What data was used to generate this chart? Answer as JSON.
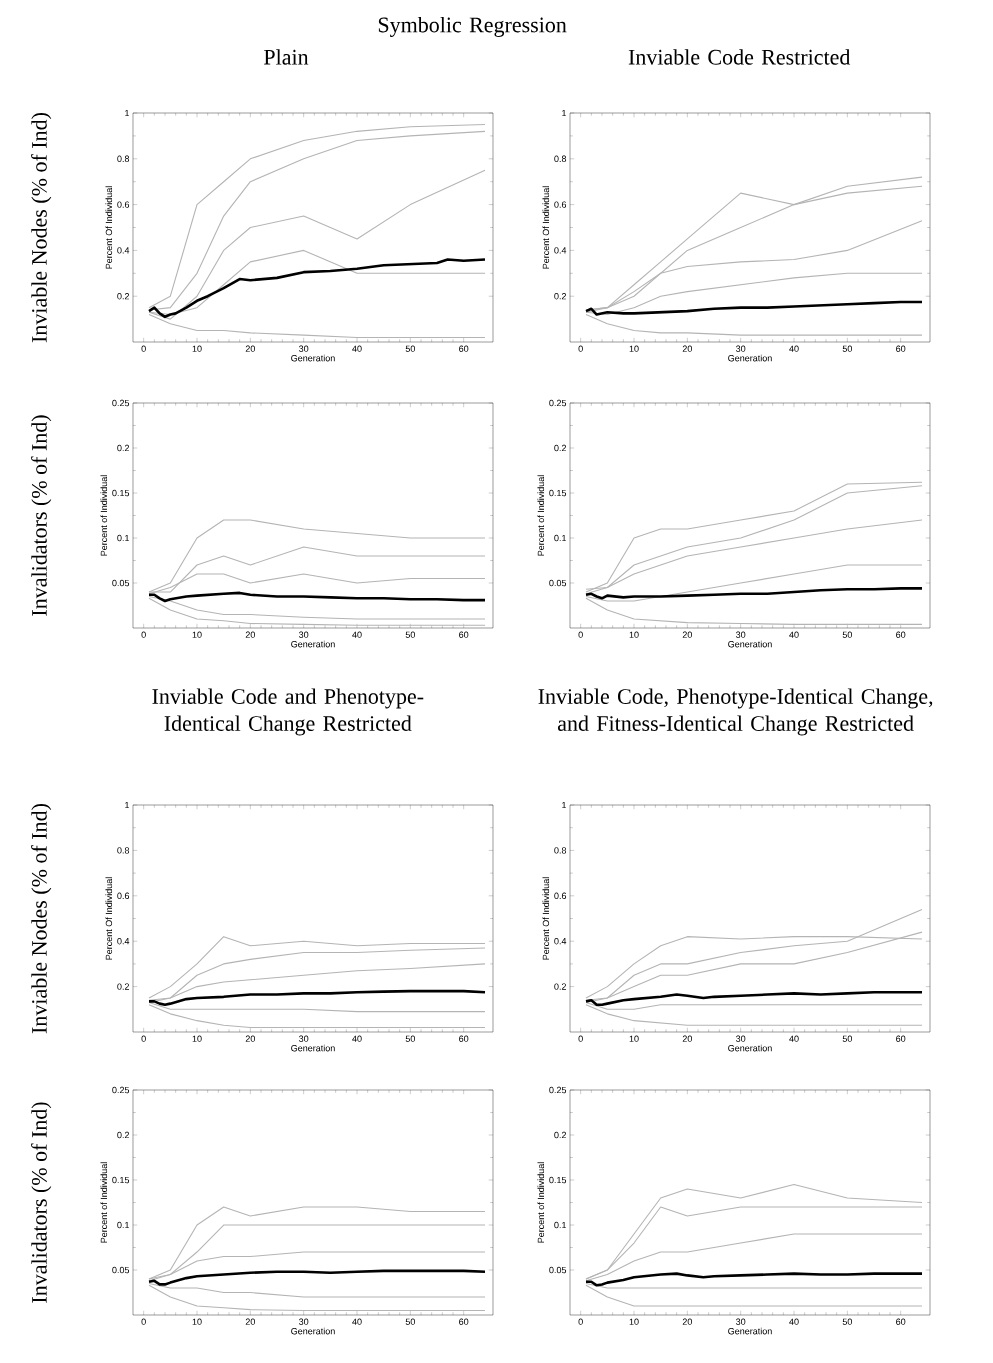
{
  "chart_data": [
    {
      "type": "line",
      "title": "Symbolic Regression",
      "subtitle": "Plain",
      "xlabel": "Generation",
      "ylabel": "Percent Of Individual",
      "annotations": [
        "Inviable Nodes (% of Ind)"
      ],
      "xlim": [
        -2,
        65.5
      ],
      "ylim": [
        0,
        1
      ],
      "xticks": [
        0,
        10,
        20,
        30,
        40,
        50,
        60
      ],
      "yticks": [
        0.2,
        0.4,
        0.6,
        0.8,
        1
      ],
      "series": [
        {
          "color": "#b4b4b4",
          "x": [
            1,
            5,
            10,
            15,
            20,
            30,
            40,
            50,
            64
          ],
          "values": [
            0.15,
            0.2,
            0.6,
            0.7,
            0.8,
            0.88,
            0.92,
            0.94,
            0.95
          ]
        },
        {
          "color": "#b4b4b4",
          "x": [
            1,
            5,
            10,
            15,
            20,
            30,
            40,
            50,
            64
          ],
          "values": [
            0.14,
            0.15,
            0.3,
            0.55,
            0.7,
            0.8,
            0.88,
            0.9,
            0.92
          ]
        },
        {
          "color": "#b4b4b4",
          "x": [
            1,
            5,
            10,
            15,
            20,
            30,
            40,
            50,
            64
          ],
          "values": [
            0.13,
            0.1,
            0.2,
            0.4,
            0.5,
            0.55,
            0.45,
            0.6,
            0.75
          ]
        },
        {
          "color": "#b4b4b4",
          "x": [
            1,
            5,
            10,
            15,
            20,
            30,
            40,
            50,
            64
          ],
          "values": [
            0.13,
            0.12,
            0.15,
            0.25,
            0.35,
            0.4,
            0.3,
            0.3,
            0.3
          ]
        },
        {
          "color": "#b4b4b4",
          "x": [
            1,
            5,
            10,
            15,
            20,
            30,
            40,
            50,
            64
          ],
          "values": [
            0.12,
            0.08,
            0.05,
            0.05,
            0.04,
            0.03,
            0.02,
            0.02,
            0.02
          ]
        },
        {
          "color": "#000000",
          "x": [
            1,
            2,
            3,
            4,
            5,
            6,
            8,
            10,
            12,
            15,
            18,
            20,
            25,
            30,
            35,
            40,
            45,
            50,
            55,
            57,
            60,
            64
          ],
          "values": [
            0.135,
            0.15,
            0.125,
            0.11,
            0.12,
            0.125,
            0.15,
            0.18,
            0.2,
            0.235,
            0.275,
            0.27,
            0.28,
            0.305,
            0.31,
            0.32,
            0.335,
            0.34,
            0.345,
            0.36,
            0.355,
            0.36
          ]
        }
      ]
    },
    {
      "type": "line",
      "title": "Inviable Code Restricted",
      "xlabel": "Generation",
      "ylabel": "Percent Of Individual",
      "xlim": [
        -2,
        65.5
      ],
      "ylim": [
        0,
        1
      ],
      "xticks": [
        0,
        10,
        20,
        30,
        40,
        50,
        60
      ],
      "yticks": [
        0.2,
        0.4,
        0.6,
        0.8,
        1
      ],
      "series": [
        {
          "color": "#b4b4b4",
          "x": [
            1,
            5,
            10,
            15,
            20,
            30,
            40,
            50,
            64
          ],
          "values": [
            0.14,
            0.15,
            0.25,
            0.35,
            0.45,
            0.65,
            0.6,
            0.68,
            0.72
          ]
        },
        {
          "color": "#b4b4b4",
          "x": [
            1,
            5,
            10,
            15,
            20,
            30,
            40,
            50,
            64
          ],
          "values": [
            0.14,
            0.15,
            0.2,
            0.3,
            0.4,
            0.5,
            0.6,
            0.65,
            0.68
          ]
        },
        {
          "color": "#b4b4b4",
          "x": [
            1,
            5,
            10,
            15,
            20,
            30,
            40,
            50,
            64
          ],
          "values": [
            0.13,
            0.15,
            0.22,
            0.3,
            0.33,
            0.35,
            0.36,
            0.4,
            0.53
          ]
        },
        {
          "color": "#b4b4b4",
          "x": [
            1,
            5,
            10,
            15,
            20,
            30,
            40,
            50,
            64
          ],
          "values": [
            0.13,
            0.12,
            0.15,
            0.2,
            0.22,
            0.25,
            0.28,
            0.3,
            0.3
          ]
        },
        {
          "color": "#b4b4b4",
          "x": [
            1,
            5,
            10,
            15,
            20,
            30,
            40,
            50,
            64
          ],
          "values": [
            0.12,
            0.08,
            0.05,
            0.04,
            0.04,
            0.03,
            0.03,
            0.03,
            0.03
          ]
        },
        {
          "color": "#000000",
          "x": [
            1,
            2,
            3,
            4,
            5,
            8,
            10,
            15,
            20,
            25,
            30,
            35,
            40,
            45,
            50,
            55,
            60,
            64
          ],
          "values": [
            0.135,
            0.145,
            0.12,
            0.125,
            0.13,
            0.125,
            0.125,
            0.13,
            0.135,
            0.145,
            0.15,
            0.15,
            0.155,
            0.16,
            0.165,
            0.17,
            0.175,
            0.175
          ]
        }
      ]
    },
    {
      "type": "line",
      "xlabel": "Generation",
      "ylabel": "Percent of Individual",
      "annotations": [
        "Invalidators (% of Ind)"
      ],
      "xlim": [
        -2,
        65.5
      ],
      "ylim": [
        0,
        0.25
      ],
      "xticks": [
        0,
        10,
        20,
        30,
        40,
        50,
        60
      ],
      "yticks": [
        0.05,
        0.1,
        0.15,
        0.2,
        0.25
      ],
      "series": [
        {
          "color": "#b4b4b4",
          "x": [
            1,
            5,
            10,
            15,
            20,
            30,
            40,
            50,
            64
          ],
          "values": [
            0.04,
            0.05,
            0.1,
            0.12,
            0.12,
            0.11,
            0.105,
            0.1,
            0.1
          ]
        },
        {
          "color": "#b4b4b4",
          "x": [
            1,
            5,
            10,
            15,
            20,
            30,
            40,
            50,
            64
          ],
          "values": [
            0.04,
            0.04,
            0.07,
            0.08,
            0.07,
            0.09,
            0.08,
            0.08,
            0.08
          ]
        },
        {
          "color": "#b4b4b4",
          "x": [
            1,
            5,
            10,
            15,
            20,
            30,
            40,
            50,
            64
          ],
          "values": [
            0.038,
            0.045,
            0.06,
            0.06,
            0.05,
            0.06,
            0.05,
            0.055,
            0.055
          ]
        },
        {
          "color": "#b4b4b4",
          "x": [
            1,
            5,
            10,
            15,
            20,
            30,
            40,
            50,
            64
          ],
          "values": [
            0.035,
            0.03,
            0.02,
            0.015,
            0.015,
            0.012,
            0.01,
            0.01,
            0.01
          ]
        },
        {
          "color": "#b4b4b4",
          "x": [
            1,
            5,
            10,
            15,
            20,
            30,
            40,
            50,
            64
          ],
          "values": [
            0.033,
            0.02,
            0.01,
            0.008,
            0.005,
            0.004,
            0.003,
            0.003,
            0.003
          ]
        },
        {
          "color": "#000000",
          "x": [
            1,
            2,
            3,
            4,
            5,
            8,
            10,
            15,
            18,
            20,
            25,
            30,
            35,
            40,
            45,
            50,
            55,
            60,
            64
          ],
          "values": [
            0.037,
            0.037,
            0.033,
            0.03,
            0.032,
            0.035,
            0.036,
            0.038,
            0.039,
            0.037,
            0.035,
            0.035,
            0.034,
            0.033,
            0.033,
            0.032,
            0.032,
            0.031,
            0.031
          ]
        }
      ]
    },
    {
      "type": "line",
      "xlabel": "Generation",
      "ylabel": "Percent of Individual",
      "xlim": [
        -2,
        65.5
      ],
      "ylim": [
        0,
        0.25
      ],
      "xticks": [
        0,
        10,
        20,
        30,
        40,
        50,
        60
      ],
      "yticks": [
        0.05,
        0.1,
        0.15,
        0.2,
        0.25
      ],
      "series": [
        {
          "color": "#b4b4b4",
          "x": [
            1,
            5,
            10,
            15,
            20,
            30,
            40,
            50,
            64
          ],
          "values": [
            0.04,
            0.05,
            0.1,
            0.11,
            0.11,
            0.12,
            0.13,
            0.16,
            0.162
          ]
        },
        {
          "color": "#b4b4b4",
          "x": [
            1,
            5,
            10,
            15,
            20,
            30,
            40,
            50,
            64
          ],
          "values": [
            0.043,
            0.045,
            0.07,
            0.08,
            0.09,
            0.1,
            0.12,
            0.15,
            0.158
          ]
        },
        {
          "color": "#b4b4b4",
          "x": [
            1,
            5,
            10,
            15,
            20,
            30,
            40,
            50,
            64
          ],
          "values": [
            0.038,
            0.045,
            0.06,
            0.07,
            0.08,
            0.09,
            0.1,
            0.11,
            0.12
          ]
        },
        {
          "color": "#b4b4b4",
          "x": [
            1,
            5,
            10,
            15,
            20,
            30,
            40,
            50,
            64
          ],
          "values": [
            0.035,
            0.03,
            0.03,
            0.035,
            0.04,
            0.05,
            0.06,
            0.07,
            0.07
          ]
        },
        {
          "color": "#b4b4b4",
          "x": [
            1,
            5,
            10,
            15,
            20,
            30,
            40,
            50,
            64
          ],
          "values": [
            0.033,
            0.02,
            0.01,
            0.008,
            0.006,
            0.005,
            0.004,
            0.004,
            0.004
          ]
        },
        {
          "color": "#000000",
          "x": [
            1,
            2,
            3,
            4,
            5,
            8,
            10,
            15,
            20,
            25,
            30,
            35,
            40,
            45,
            50,
            55,
            60,
            64
          ],
          "values": [
            0.037,
            0.038,
            0.035,
            0.033,
            0.036,
            0.034,
            0.035,
            0.035,
            0.036,
            0.037,
            0.038,
            0.038,
            0.04,
            0.042,
            0.043,
            0.043,
            0.044,
            0.044
          ]
        }
      ]
    },
    {
      "type": "line",
      "title": "Inviable Code and Phenotype-Identical Change Restricted",
      "xlabel": "Generation",
      "ylabel": "Percent Of Individual",
      "annotations": [
        "Inviable Nodes (% of Ind)"
      ],
      "xlim": [
        -2,
        65.5
      ],
      "ylim": [
        0,
        1
      ],
      "xticks": [
        0,
        10,
        20,
        30,
        40,
        50,
        60
      ],
      "yticks": [
        0.2,
        0.4,
        0.6,
        0.8,
        1
      ],
      "series": [
        {
          "color": "#b4b4b4",
          "x": [
            1,
            5,
            10,
            15,
            20,
            30,
            40,
            50,
            64
          ],
          "values": [
            0.15,
            0.2,
            0.3,
            0.42,
            0.38,
            0.4,
            0.38,
            0.39,
            0.39
          ]
        },
        {
          "color": "#b4b4b4",
          "x": [
            1,
            5,
            10,
            15,
            20,
            30,
            40,
            50,
            64
          ],
          "values": [
            0.14,
            0.15,
            0.25,
            0.3,
            0.32,
            0.35,
            0.35,
            0.36,
            0.37
          ]
        },
        {
          "color": "#b4b4b4",
          "x": [
            1,
            5,
            10,
            15,
            20,
            30,
            40,
            50,
            64
          ],
          "values": [
            0.13,
            0.15,
            0.2,
            0.22,
            0.23,
            0.25,
            0.27,
            0.28,
            0.3
          ]
        },
        {
          "color": "#b4b4b4",
          "x": [
            1,
            5,
            10,
            15,
            20,
            30,
            40,
            50,
            64
          ],
          "values": [
            0.13,
            0.1,
            0.1,
            0.1,
            0.1,
            0.1,
            0.09,
            0.09,
            0.09
          ]
        },
        {
          "color": "#b4b4b4",
          "x": [
            1,
            5,
            10,
            15,
            20,
            30,
            40,
            50,
            64
          ],
          "values": [
            0.12,
            0.08,
            0.05,
            0.03,
            0.02,
            0.02,
            0.02,
            0.02,
            0.02
          ]
        },
        {
          "color": "#000000",
          "x": [
            1,
            2,
            3,
            4,
            5,
            8,
            10,
            15,
            20,
            25,
            30,
            35,
            40,
            45,
            50,
            55,
            60,
            64
          ],
          "values": [
            0.135,
            0.135,
            0.125,
            0.12,
            0.125,
            0.145,
            0.15,
            0.155,
            0.165,
            0.165,
            0.17,
            0.17,
            0.175,
            0.178,
            0.18,
            0.18,
            0.18,
            0.175
          ]
        }
      ]
    },
    {
      "type": "line",
      "title": "Inviable Code, Phenotype-Identical Change, and Fitness-Identical Change Restricted",
      "xlabel": "Generation",
      "ylabel": "Percent Of Individual",
      "xlim": [
        -2,
        65.5
      ],
      "ylim": [
        0,
        1
      ],
      "xticks": [
        0,
        10,
        20,
        30,
        40,
        50,
        60
      ],
      "yticks": [
        0.2,
        0.4,
        0.6,
        0.8,
        1
      ],
      "series": [
        {
          "color": "#b4b4b4",
          "x": [
            1,
            5,
            10,
            15,
            20,
            30,
            40,
            50,
            64
          ],
          "values": [
            0.15,
            0.2,
            0.3,
            0.38,
            0.42,
            0.41,
            0.42,
            0.42,
            0.41
          ]
        },
        {
          "color": "#b4b4b4",
          "x": [
            1,
            5,
            10,
            15,
            20,
            30,
            40,
            50,
            64
          ],
          "values": [
            0.14,
            0.15,
            0.25,
            0.3,
            0.3,
            0.35,
            0.38,
            0.4,
            0.54
          ]
        },
        {
          "color": "#b4b4b4",
          "x": [
            1,
            5,
            10,
            15,
            20,
            30,
            40,
            50,
            64
          ],
          "values": [
            0.13,
            0.15,
            0.2,
            0.25,
            0.25,
            0.3,
            0.3,
            0.35,
            0.44
          ]
        },
        {
          "color": "#b4b4b4",
          "x": [
            1,
            5,
            10,
            15,
            20,
            30,
            40,
            50,
            64
          ],
          "values": [
            0.13,
            0.1,
            0.1,
            0.12,
            0.12,
            0.12,
            0.12,
            0.12,
            0.12
          ]
        },
        {
          "color": "#b4b4b4",
          "x": [
            1,
            5,
            10,
            15,
            20,
            30,
            40,
            50,
            64
          ],
          "values": [
            0.12,
            0.08,
            0.05,
            0.04,
            0.03,
            0.03,
            0.03,
            0.03,
            0.03
          ]
        },
        {
          "color": "#000000",
          "x": [
            1,
            2,
            3,
            4,
            5,
            8,
            10,
            15,
            18,
            20,
            23,
            25,
            30,
            35,
            40,
            45,
            50,
            55,
            60,
            64
          ],
          "values": [
            0.135,
            0.14,
            0.12,
            0.12,
            0.125,
            0.14,
            0.145,
            0.155,
            0.165,
            0.16,
            0.15,
            0.155,
            0.16,
            0.165,
            0.17,
            0.165,
            0.17,
            0.175,
            0.175,
            0.175
          ]
        }
      ]
    },
    {
      "type": "line",
      "xlabel": "Generation",
      "ylabel": "Percent of Individual",
      "annotations": [
        "Invalidators (% of Ind)"
      ],
      "xlim": [
        -2,
        65.5
      ],
      "ylim": [
        0,
        0.25
      ],
      "xticks": [
        0,
        10,
        20,
        30,
        40,
        50,
        60
      ],
      "yticks": [
        0.05,
        0.1,
        0.15,
        0.2,
        0.25
      ],
      "series": [
        {
          "color": "#b4b4b4",
          "x": [
            1,
            5,
            10,
            15,
            20,
            30,
            40,
            50,
            64
          ],
          "values": [
            0.04,
            0.05,
            0.1,
            0.12,
            0.11,
            0.12,
            0.12,
            0.115,
            0.115
          ]
        },
        {
          "color": "#b4b4b4",
          "x": [
            1,
            5,
            10,
            15,
            20,
            30,
            40,
            50,
            64
          ],
          "values": [
            0.04,
            0.045,
            0.07,
            0.1,
            0.1,
            0.1,
            0.1,
            0.1,
            0.1
          ]
        },
        {
          "color": "#b4b4b4",
          "x": [
            1,
            5,
            10,
            15,
            20,
            30,
            40,
            50,
            64
          ],
          "values": [
            0.038,
            0.045,
            0.06,
            0.065,
            0.065,
            0.07,
            0.07,
            0.07,
            0.07
          ]
        },
        {
          "color": "#b4b4b4",
          "x": [
            1,
            5,
            10,
            15,
            20,
            30,
            40,
            50,
            64
          ],
          "values": [
            0.035,
            0.03,
            0.03,
            0.025,
            0.025,
            0.02,
            0.02,
            0.02,
            0.02
          ]
        },
        {
          "color": "#b4b4b4",
          "x": [
            1,
            5,
            10,
            15,
            20,
            30,
            40,
            50,
            64
          ],
          "values": [
            0.033,
            0.02,
            0.01,
            0.008,
            0.006,
            0.005,
            0.005,
            0.005,
            0.005
          ]
        },
        {
          "color": "#000000",
          "x": [
            1,
            2,
            3,
            4,
            5,
            8,
            10,
            15,
            20,
            25,
            30,
            35,
            40,
            45,
            50,
            55,
            60,
            64
          ],
          "values": [
            0.037,
            0.038,
            0.034,
            0.034,
            0.036,
            0.041,
            0.043,
            0.045,
            0.047,
            0.048,
            0.048,
            0.047,
            0.048,
            0.049,
            0.049,
            0.049,
            0.049,
            0.048
          ]
        }
      ]
    },
    {
      "type": "line",
      "xlabel": "Generation",
      "ylabel": "Percent of Individual",
      "xlim": [
        -2,
        65.5
      ],
      "ylim": [
        0,
        0.25
      ],
      "xticks": [
        0,
        10,
        20,
        30,
        40,
        50,
        60
      ],
      "yticks": [
        0.05,
        0.1,
        0.15,
        0.2,
        0.25
      ],
      "series": [
        {
          "color": "#b4b4b4",
          "x": [
            1,
            5,
            10,
            15,
            20,
            30,
            40,
            50,
            64
          ],
          "values": [
            0.04,
            0.05,
            0.09,
            0.13,
            0.14,
            0.13,
            0.145,
            0.13,
            0.125
          ]
        },
        {
          "color": "#b4b4b4",
          "x": [
            1,
            5,
            10,
            15,
            20,
            30,
            40,
            50,
            64
          ],
          "values": [
            0.04,
            0.05,
            0.08,
            0.12,
            0.11,
            0.12,
            0.12,
            0.12,
            0.12
          ]
        },
        {
          "color": "#b4b4b4",
          "x": [
            1,
            5,
            10,
            15,
            20,
            30,
            40,
            50,
            64
          ],
          "values": [
            0.038,
            0.045,
            0.06,
            0.07,
            0.07,
            0.08,
            0.09,
            0.09,
            0.09
          ]
        },
        {
          "color": "#b4b4b4",
          "x": [
            1,
            5,
            10,
            15,
            20,
            30,
            40,
            50,
            64
          ],
          "values": [
            0.035,
            0.03,
            0.03,
            0.03,
            0.03,
            0.03,
            0.03,
            0.03,
            0.03
          ]
        },
        {
          "color": "#b4b4b4",
          "x": [
            1,
            5,
            10,
            15,
            20,
            30,
            40,
            50,
            64
          ],
          "values": [
            0.033,
            0.02,
            0.01,
            0.01,
            0.01,
            0.01,
            0.01,
            0.01,
            0.01
          ]
        },
        {
          "color": "#000000",
          "x": [
            1,
            2,
            3,
            4,
            5,
            8,
            10,
            15,
            18,
            20,
            23,
            25,
            30,
            35,
            40,
            45,
            50,
            55,
            60,
            64
          ],
          "values": [
            0.037,
            0.037,
            0.033,
            0.034,
            0.036,
            0.039,
            0.042,
            0.045,
            0.046,
            0.044,
            0.042,
            0.043,
            0.044,
            0.045,
            0.046,
            0.045,
            0.045,
            0.046,
            0.046,
            0.046
          ]
        }
      ]
    }
  ]
}
